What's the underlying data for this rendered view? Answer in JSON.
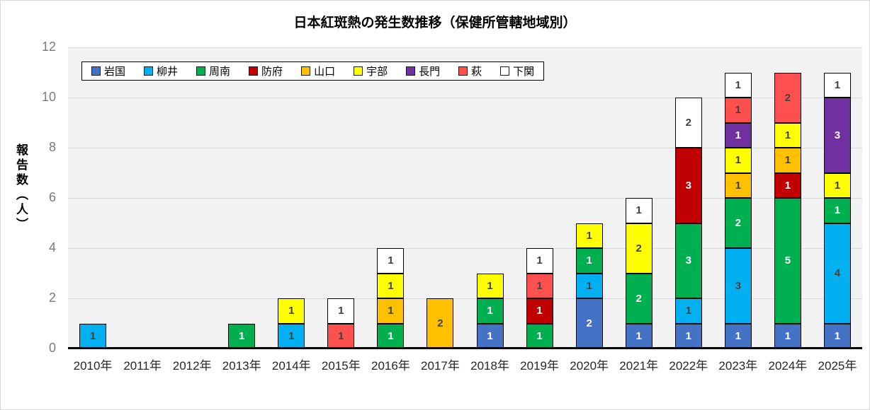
{
  "chart_data": {
    "type": "bar",
    "stacked": true,
    "title": "日本紅斑熱の発生数推移（保健所管轄地域別）",
    "xlabel": "",
    "ylabel": "報告数（人）",
    "ylim": [
      0,
      12
    ],
    "yticks": [
      0,
      2,
      4,
      6,
      8,
      10,
      12
    ],
    "grid": true,
    "legend_position": "top-left-inside",
    "plot_background": "#F2F2F2",
    "gridline_color": "#D9D9D9",
    "axis_line_color": "#000000",
    "categories": [
      "2010年",
      "2011年",
      "2012年",
      "2013年",
      "2014年",
      "2015年",
      "2016年",
      "2017年",
      "2018年",
      "2019年",
      "2020年",
      "2021年",
      "2022年",
      "2023年",
      "2024年",
      "2025年"
    ],
    "series": [
      {
        "name": "岩国",
        "color": "#4472C4",
        "text_color": "#FFFFFF",
        "values": [
          0,
          0,
          0,
          0,
          0,
          0,
          0,
          0,
          1,
          0,
          2,
          1,
          1,
          1,
          1,
          1
        ]
      },
      {
        "name": "柳井",
        "color": "#00B0F0",
        "text_color": "#404040",
        "values": [
          1,
          0,
          0,
          0,
          1,
          0,
          0,
          0,
          0,
          0,
          1,
          0,
          1,
          3,
          0,
          4
        ]
      },
      {
        "name": "周南",
        "color": "#00B050",
        "text_color": "#FFFFFF",
        "values": [
          0,
          0,
          0,
          1,
          0,
          0,
          1,
          0,
          1,
          1,
          1,
          2,
          3,
          2,
          5,
          1
        ]
      },
      {
        "name": "防府",
        "color": "#C00000",
        "text_color": "#FFFFFF",
        "values": [
          0,
          0,
          0,
          0,
          0,
          0,
          0,
          0,
          0,
          1,
          0,
          0,
          3,
          0,
          1,
          0
        ]
      },
      {
        "name": "山口",
        "color": "#FFC000",
        "text_color": "#404040",
        "values": [
          0,
          0,
          0,
          0,
          0,
          0,
          1,
          2,
          0,
          0,
          0,
          0,
          0,
          1,
          1,
          0
        ]
      },
      {
        "name": "宇部",
        "color": "#FFFF00",
        "text_color": "#404040",
        "values": [
          0,
          0,
          0,
          0,
          1,
          0,
          1,
          0,
          1,
          0,
          1,
          2,
          0,
          1,
          1,
          1
        ]
      },
      {
        "name": "長門",
        "color": "#7030A0",
        "text_color": "#FFFFFF",
        "values": [
          0,
          0,
          0,
          0,
          0,
          0,
          0,
          0,
          0,
          0,
          0,
          0,
          0,
          1,
          0,
          3
        ]
      },
      {
        "name": "萩",
        "color": "#FF5050",
        "text_color": "#404040",
        "values": [
          0,
          0,
          0,
          0,
          0,
          1,
          0,
          0,
          0,
          1,
          0,
          0,
          0,
          1,
          2,
          0
        ]
      },
      {
        "name": "下関",
        "color": "#FFFFFF",
        "text_color": "#404040",
        "values": [
          0,
          0,
          0,
          0,
          0,
          1,
          1,
          0,
          0,
          1,
          0,
          1,
          2,
          1,
          0,
          1
        ]
      }
    ],
    "totals": [
      1,
      0,
      0,
      1,
      2,
      2,
      4,
      2,
      3,
      4,
      5,
      6,
      10,
      11,
      11,
      11
    ]
  }
}
